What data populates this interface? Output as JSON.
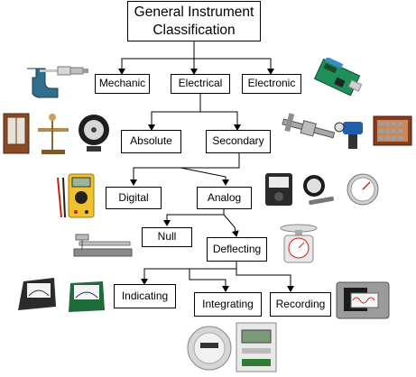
{
  "diagram": {
    "root": {
      "line1": "General Instrument",
      "line2": "Classification"
    },
    "nodes": {
      "mechanic": "Mechanic",
      "electrical": "Electrical",
      "electronic": "Electronic",
      "absolute": "Absolute",
      "secondary": "Secondary",
      "digital": "Digital",
      "analog": "Analog",
      "null": "Null",
      "deflecting": "Deflecting",
      "indicating": "Indicating",
      "integrating": "Integrating",
      "recording": "Recording"
    },
    "line_color": "#000000"
  },
  "images": {
    "micrometer": "micrometer-picture",
    "circuit_board": "electronic-board-picture",
    "absolute_instruments": "absolute-instruments-picture",
    "secondary_instruments": "caliper-level-gauge-picture",
    "digital_multimeter": "digital-multimeter-picture",
    "analog_meters": "analog-meters-picture",
    "balance_scale": "balance-scale-picture",
    "weighing_scale": "weighing-scale-picture",
    "indicating_meters": "indicating-meters-picture",
    "energy_meters": "energy-meters-picture",
    "chart_recorder": "chart-recorder-picture"
  }
}
